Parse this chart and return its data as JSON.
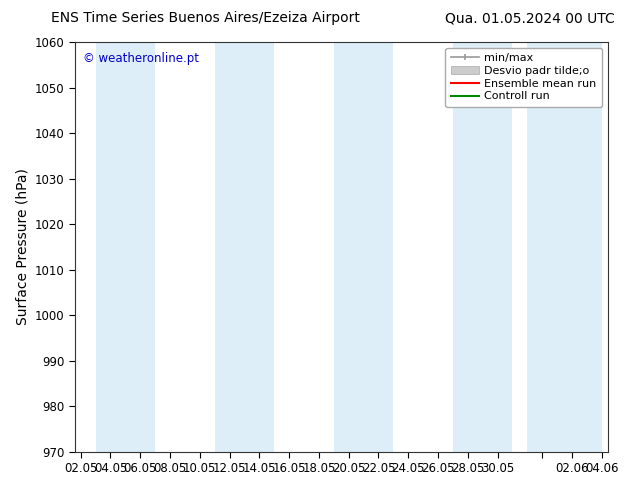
{
  "title_left": "ENS Time Series Buenos Aires/Ezeiza Airport",
  "title_right": "Qua. 01.05.2024 00 UTC",
  "ylabel": "Surface Pressure (hPa)",
  "ylim": [
    970,
    1060
  ],
  "yticks": [
    970,
    980,
    990,
    1000,
    1010,
    1020,
    1030,
    1040,
    1050,
    1060
  ],
  "xtick_labels": [
    "02.05",
    "04.05",
    "06.05",
    "08.05",
    "10.05",
    "12.05",
    "14.05",
    "16.05",
    "18.05",
    "20.05",
    "22.05",
    "24.05",
    "26.05",
    "28.05",
    "30.05",
    "",
    "02.06",
    "04.06"
  ],
  "xtick_positions": [
    0,
    1,
    2,
    3,
    4,
    5,
    6,
    7,
    8,
    9,
    10,
    11,
    12,
    13,
    14,
    15.5,
    16.5,
    17.5
  ],
  "watermark": "© weatheronline.pt",
  "watermark_color": "#0000cc",
  "bg_color": "#ffffff",
  "plot_bg_color": "#ffffff",
  "shaded_band_color": "#ddeef8",
  "shaded_ranges": [
    [
      0.5,
      2.5
    ],
    [
      4.5,
      6.5
    ],
    [
      8.5,
      10.5
    ],
    [
      12.5,
      14.5
    ],
    [
      15,
      17.5
    ]
  ],
  "legend_entries": [
    {
      "label": "min/max",
      "color": "#999999",
      "style": "minmax"
    },
    {
      "label": "Desvio padr tilde;o",
      "color": "#cccccc",
      "style": "std"
    },
    {
      "label": "Ensemble mean run",
      "color": "#ff0000",
      "style": "line"
    },
    {
      "label": "Controll run",
      "color": "#008800",
      "style": "line"
    }
  ],
  "title_fontsize": 10,
  "ylabel_fontsize": 10,
  "tick_fontsize": 8.5,
  "legend_fontsize": 8
}
